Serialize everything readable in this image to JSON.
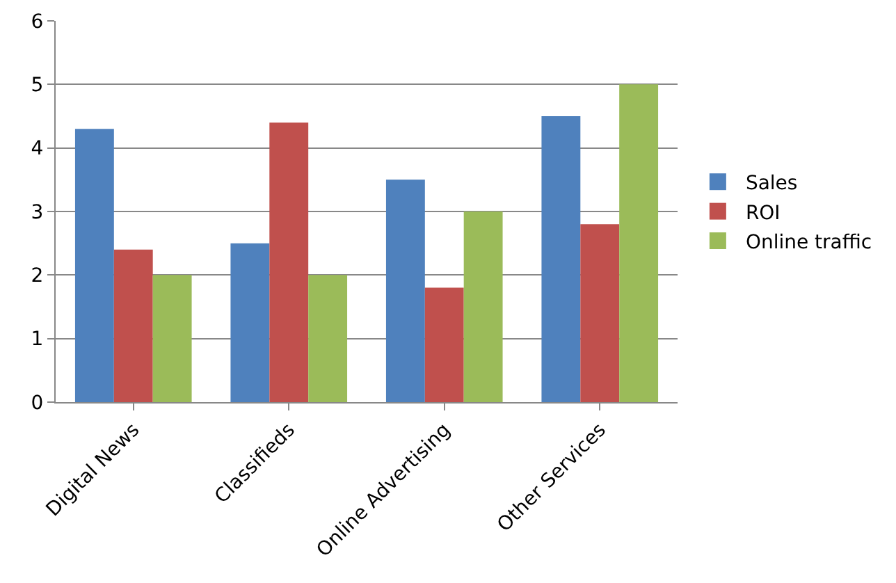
{
  "chart_data": {
    "type": "bar",
    "categories": [
      "Digital News",
      "Classifieds",
      "Online Advertising",
      "Other Services"
    ],
    "series": [
      {
        "name": "Sales",
        "color": "#4f81bd",
        "values": [
          4.3,
          2.5,
          3.5,
          4.5
        ]
      },
      {
        "name": "ROI",
        "color": "#c0504d",
        "values": [
          2.4,
          4.4,
          1.8,
          2.8
        ]
      },
      {
        "name": "Online traffic",
        "color": "#9bbb59",
        "values": [
          2,
          2,
          3,
          5
        ]
      }
    ],
    "ylim": [
      0,
      6
    ],
    "yticks": [
      0,
      1,
      2,
      3,
      4,
      5,
      6
    ],
    "grid": "y",
    "legend": "right"
  }
}
